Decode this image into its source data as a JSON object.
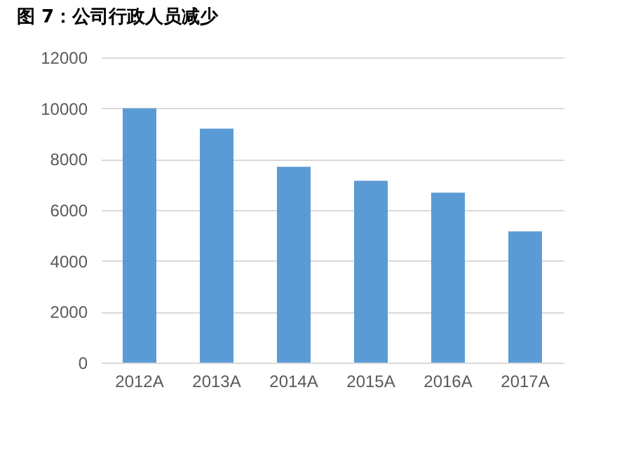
{
  "chart_data": {
    "type": "bar",
    "title": "图 7：公司行政人员减少",
    "categories": [
      "2012A",
      "2013A",
      "2014A",
      "2015A",
      "2016A",
      "2017A"
    ],
    "values": [
      10000,
      9200,
      7700,
      7150,
      6680,
      5160
    ],
    "color": "#5b9bd5",
    "ylim": [
      0,
      12000
    ],
    "yticks": [
      0,
      2000,
      4000,
      6000,
      8000,
      10000,
      12000
    ],
    "grid": "y"
  }
}
